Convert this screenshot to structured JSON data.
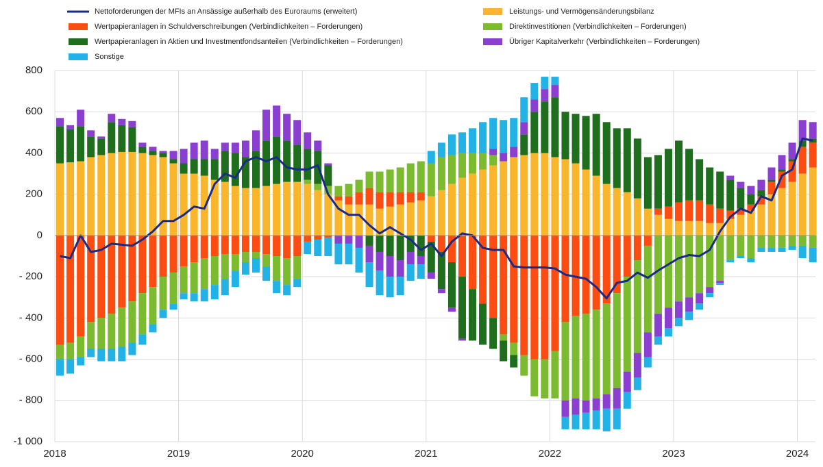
{
  "chart_data": {
    "type": "bar",
    "categories": [
      "2018",
      null,
      null,
      null,
      null,
      null,
      null,
      null,
      null,
      null,
      null,
      null,
      "2019",
      null,
      null,
      null,
      null,
      null,
      null,
      null,
      null,
      null,
      null,
      null,
      "2020",
      null,
      null,
      null,
      null,
      null,
      null,
      null,
      null,
      null,
      null,
      null,
      "2021",
      null,
      null,
      null,
      null,
      null,
      null,
      null,
      null,
      null,
      null,
      null,
      "2022",
      null,
      null,
      null,
      null,
      null,
      null,
      null,
      null,
      null,
      null,
      null,
      "2023",
      null,
      null,
      null,
      null,
      null,
      null,
      null,
      null,
      null,
      null,
      null,
      "2024",
      null
    ],
    "series": [
      {
        "name": "Nettoforderungen der MFIs an Ansässige außerhalb des Euroraums (erweitert)",
        "type": "line",
        "color": "#1b2a86",
        "values": [
          -100,
          -110,
          0,
          -80,
          -70,
          -40,
          -45,
          -50,
          -20,
          20,
          70,
          70,
          100,
          140,
          130,
          250,
          300,
          280,
          360,
          380,
          360,
          380,
          330,
          320,
          320,
          340,
          200,
          130,
          100,
          100,
          50,
          10,
          40,
          10,
          -20,
          -70,
          -40,
          -100,
          -30,
          10,
          0,
          -60,
          -70,
          -70,
          -150,
          -155,
          -155,
          -155,
          -160,
          -190,
          -200,
          -210,
          -250,
          -305,
          -230,
          -220,
          -180,
          -205,
          -170,
          -140,
          -110,
          -95,
          -100,
          -70,
          20,
          90,
          130,
          110,
          190,
          170,
          290,
          320,
          470,
          460
        ]
      },
      {
        "name": "Wertpapieranlagen in Schuldverschreibungen (Verbindlichkeiten – Forderungen)",
        "color": "#fb4d12",
        "values": [
          -530,
          -520,
          -490,
          -420,
          -400,
          -380,
          -350,
          -320,
          -280,
          -250,
          -200,
          -180,
          -150,
          -130,
          -110,
          -100,
          -90,
          -90,
          -80,
          -80,
          -90,
          -100,
          -110,
          -100,
          -30,
          -20,
          -10,
          20,
          40,
          60,
          80,
          80,
          70,
          60,
          50,
          40,
          -30,
          -80,
          -130,
          -200,
          -260,
          -330,
          -400,
          -480,
          -520,
          -580,
          -600,
          -600,
          -560,
          -420,
          -390,
          -380,
          -360,
          -330,
          -280,
          -200,
          -120,
          -50,
          30,
          60,
          90,
          100,
          100,
          90,
          70,
          40,
          30,
          30,
          40,
          60,
          80,
          100,
          130,
          120
        ]
      },
      {
        "name": "Wertpapieranlagen in Aktien und Investmentfondsanteilen (Verbindlichkeiten – Forderungen)",
        "color": "#1e6e1e",
        "values": [
          180,
          160,
          170,
          100,
          80,
          150,
          130,
          120,
          30,
          20,
          20,
          20,
          50,
          70,
          80,
          100,
          150,
          160,
          150,
          180,
          220,
          230,
          200,
          180,
          150,
          160,
          100,
          0,
          0,
          0,
          -50,
          -80,
          -100,
          -120,
          -80,
          -100,
          -150,
          -180,
          -220,
          -300,
          -250,
          -200,
          -150,
          -100,
          -60,
          100,
          200,
          250,
          290,
          230,
          240,
          260,
          300,
          300,
          290,
          310,
          290,
          250,
          260,
          280,
          300,
          250,
          200,
          180,
          180,
          150,
          100,
          50,
          30,
          10,
          10,
          10,
          30,
          20
        ]
      },
      {
        "name": "Sonstige",
        "color": "#23b2e6",
        "values": [
          -80,
          -70,
          -40,
          -40,
          -60,
          -60,
          -70,
          -60,
          -50,
          -40,
          -40,
          -30,
          -30,
          -40,
          -60,
          -70,
          -80,
          -80,
          -60,
          -70,
          -70,
          -60,
          -50,
          -40,
          -60,
          -80,
          -90,
          -100,
          -100,
          -120,
          -120,
          -120,
          -100,
          -90,
          -80,
          -70,
          60,
          70,
          100,
          100,
          120,
          150,
          150,
          160,
          140,
          120,
          80,
          60,
          40,
          -60,
          -70,
          -80,
          -90,
          -110,
          -100,
          -80,
          -60,
          -50,
          -40,
          -40,
          -40,
          -40,
          -30,
          -20,
          -10,
          -10,
          -10,
          -20,
          -20,
          -20,
          -20,
          -20,
          -60,
          -70
        ]
      },
      {
        "name": "Leistungs- und Vermögensänderungsbilanz",
        "color": "#f9b52b",
        "values": [
          350,
          355,
          360,
          380,
          390,
          400,
          405,
          405,
          400,
          390,
          380,
          350,
          300,
          300,
          290,
          270,
          260,
          240,
          230,
          230,
          240,
          250,
          260,
          260,
          250,
          220,
          200,
          170,
          150,
          150,
          150,
          130,
          140,
          150,
          160,
          170,
          190,
          220,
          250,
          280,
          300,
          320,
          340,
          360,
          380,
          390,
          400,
          400,
          380,
          370,
          350,
          320,
          290,
          250,
          230,
          210,
          180,
          130,
          100,
          80,
          70,
          70,
          70,
          60,
          60,
          80,
          100,
          120,
          150,
          200,
          230,
          260,
          300,
          330
        ]
      },
      {
        "name": "Direktinvestitionen (Verbindlichkeiten – Forderungen)",
        "color": "#7cba2f",
        "values": [
          -70,
          -80,
          -100,
          -130,
          -150,
          -170,
          -190,
          -200,
          -200,
          -180,
          -160,
          -150,
          -130,
          -150,
          -150,
          -140,
          -120,
          -80,
          -50,
          -30,
          -60,
          -120,
          -130,
          -110,
          20,
          30,
          40,
          50,
          60,
          60,
          80,
          100,
          110,
          120,
          140,
          150,
          160,
          160,
          140,
          120,
          100,
          80,
          50,
          -30,
          -60,
          -100,
          -180,
          -190,
          -230,
          -380,
          -400,
          -420,
          -430,
          -440,
          -460,
          -460,
          -450,
          -420,
          -380,
          -350,
          -320,
          -300,
          -280,
          -250,
          -220,
          -120,
          -100,
          -110,
          -60,
          -60,
          -60,
          -50,
          -50,
          -60
        ]
      },
      {
        "name": "Übriger Kapitalverkehr (Verbindlichkeiten – Forderungen)",
        "color": "#8a3fd1",
        "values": [
          40,
          20,
          80,
          30,
          10,
          40,
          30,
          30,
          20,
          20,
          10,
          40,
          70,
          80,
          90,
          50,
          40,
          50,
          80,
          100,
          150,
          150,
          130,
          120,
          80,
          50,
          10,
          -40,
          -40,
          -60,
          -80,
          -90,
          -100,
          -80,
          -60,
          -40,
          -30,
          -20,
          -20,
          -10,
          0,
          0,
          30,
          40,
          50,
          60,
          60,
          60,
          60,
          -80,
          -80,
          -60,
          -60,
          -70,
          -100,
          -100,
          -120,
          -120,
          -110,
          -100,
          -80,
          -70,
          -50,
          -30,
          -10,
          20,
          30,
          40,
          50,
          60,
          70,
          80,
          100,
          80
        ]
      }
    ],
    "ylim": [
      -1000,
      800
    ],
    "yticks": [
      {
        "value": -1000,
        "label": "-1 000"
      },
      {
        "value": -800,
        "label": "- 800"
      },
      {
        "value": -600,
        "label": "- 600"
      },
      {
        "value": -400,
        "label": "- 400"
      },
      {
        "value": -200,
        "label": "- 200"
      },
      0,
      200,
      400,
      600,
      800
    ],
    "grid": true
  }
}
